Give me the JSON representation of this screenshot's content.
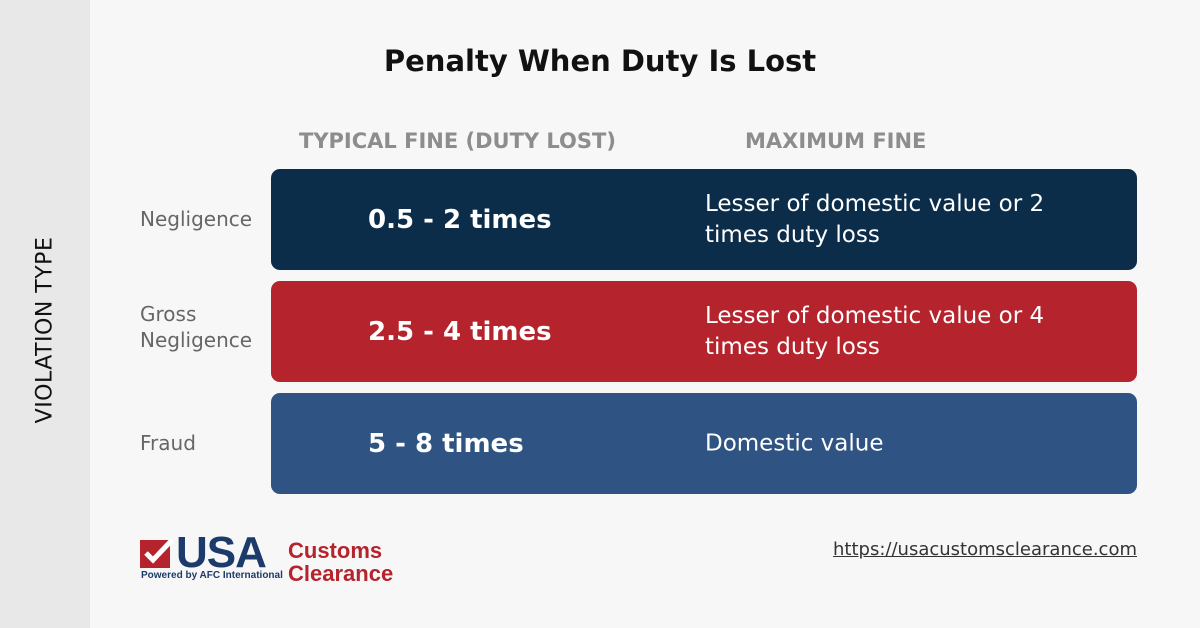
{
  "title": "Penalty When Duty Is Lost",
  "side_label": "VIOLATION TYPE",
  "table": {
    "columns": [
      "TYPICAL FINE (DUTY LOST)",
      "MAXIMUM FINE"
    ],
    "rows": [
      {
        "type": "Negligence",
        "typical": "0.5 - 2 times",
        "maximum": "Lesser of domestic value or 2 times duty loss"
      },
      {
        "type": "Gross Negligence",
        "typical": "2.5 - 4 times",
        "maximum": "Lesser of domestic value or 4 times duty loss"
      },
      {
        "type": "Fraud",
        "typical": "5 - 8 times",
        "maximum": "Domestic value"
      }
    ]
  },
  "logo": {
    "mark": "USA",
    "line1": "Customs",
    "line2": "Clearance",
    "tagline": "Powered by AFC International"
  },
  "url": "https://usacustomsclearance.com"
}
